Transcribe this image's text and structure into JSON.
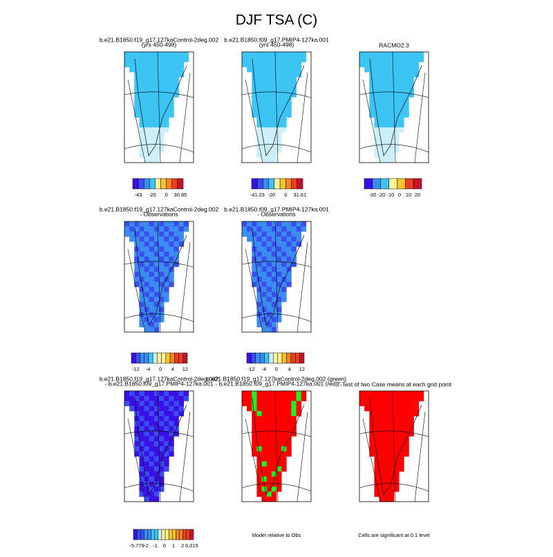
{
  "title": "DJF TSA (C)",
  "panels": [
    {
      "title": [
        "b.e21.B1850.f19_g17.127kaControl-2deg.002",
        "(yrs 450-498)"
      ],
      "colorbar": [
        "-43",
        "-20",
        "0",
        "30.85"
      ]
    },
    {
      "title": [
        "b.e21.B1850.f09_g17.PMIP4-127ka.001",
        "(yrs 450-498)"
      ],
      "colorbar": [
        "-41.23",
        "-20",
        "0",
        "31.61"
      ]
    },
    {
      "title": [
        "RACMO2.3"
      ],
      "colorbar": [
        "-30",
        "-20",
        "-10",
        "0",
        "10",
        "20"
      ]
    },
    {
      "title": [
        "b.e21.B1850.f19_g17.127kaControl-2deg.002",
        "- Observations"
      ],
      "colorbar": [
        "-12",
        "-4",
        "0",
        "4",
        "12"
      ]
    },
    {
      "title": [
        "b.e21.B1850.f09_g17.PMIP4-127ka.001",
        "- Observations"
      ],
      "colorbar": [
        "-12",
        "-4",
        "0",
        "4",
        "12"
      ]
    },
    {
      "title": [
        "b.e21.B1850.f19_g17.127kaControl-2deg.002",
        "- b.e21.B1850.f09_g17.PMIP4-127ka.001"
      ],
      "colorbar": [
        "-5.779",
        "-2",
        "-1",
        "0",
        "1",
        "2",
        "6.015"
      ]
    },
    {
      "title": [
        "b.e21.B1850.f19_g17.127kaControl-2deg.002 (green)",
        "- b.e21.B1850.f09_g17.PMIP4-127ka.001 (red)"
      ],
      "caption": "Model relative to Obs"
    },
    {
      "title": [
        "T-Test of two Case means at each grid point"
      ],
      "caption": "Cells are significant at 0.1 level"
    }
  ]
}
